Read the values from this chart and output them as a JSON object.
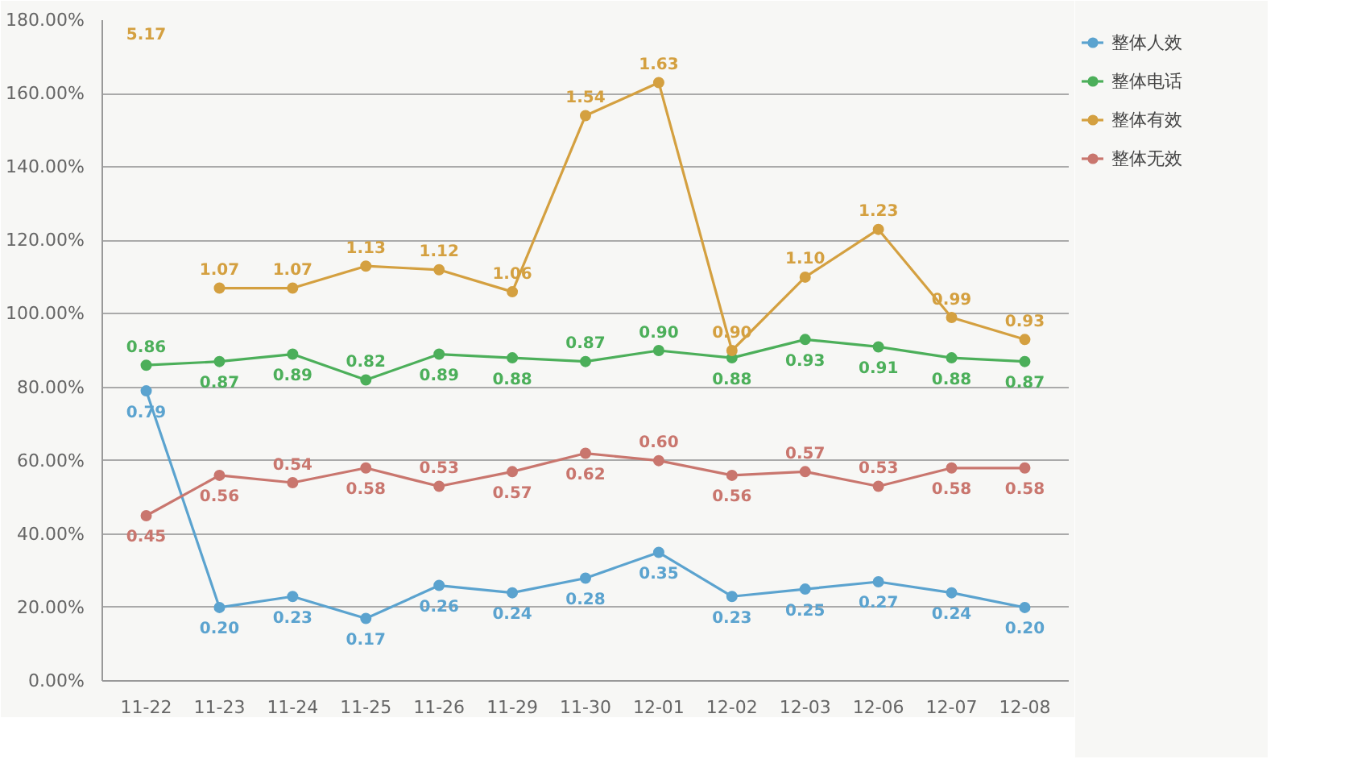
{
  "chart_data": {
    "type": "line",
    "categories": [
      "11-22",
      "11-23",
      "11-24",
      "11-25",
      "11-26",
      "11-29",
      "11-30",
      "12-01",
      "12-02",
      "12-03",
      "12-06",
      "12-07",
      "12-08"
    ],
    "series": [
      {
        "name": "整体人效",
        "color": "#5ba3cf",
        "values": [
          0.79,
          0.2,
          0.23,
          0.17,
          0.26,
          0.24,
          0.28,
          0.35,
          0.23,
          0.25,
          0.27,
          0.24,
          0.2
        ],
        "value_labels": [
          "0.79",
          "0.20",
          "0.23",
          "0.17",
          "0.26",
          "0.24",
          "0.28",
          "0.35",
          "0.23",
          "0.25",
          "0.27",
          "0.24",
          "0.20"
        ]
      },
      {
        "name": "整体电话",
        "color": "#4caf5a",
        "values": [
          0.86,
          0.87,
          0.89,
          0.82,
          0.89,
          0.88,
          0.87,
          0.9,
          0.88,
          0.93,
          0.91,
          0.88,
          0.87
        ],
        "value_labels": [
          "0.86",
          "0.87",
          "0.89",
          "0.82",
          "0.89",
          "0.88",
          "0.87",
          "0.90",
          "0.88",
          "0.93",
          "0.91",
          "0.88",
          "0.87"
        ]
      },
      {
        "name": "整体有效",
        "color": "#d4a040",
        "values": [
          null,
          1.07,
          1.07,
          1.13,
          1.12,
          1.06,
          1.54,
          1.63,
          0.9,
          1.1,
          1.23,
          0.99,
          0.93
        ],
        "value_labels": [
          null,
          "1.07",
          "1.07",
          "1.13",
          "1.12",
          "1.06",
          "1.54",
          "1.63",
          "0.90",
          "1.10",
          "1.23",
          "0.99",
          "0.93"
        ]
      },
      {
        "name": "整体无效",
        "color": "#c9766e",
        "values": [
          0.45,
          0.56,
          0.54,
          0.58,
          0.53,
          0.57,
          0.62,
          0.6,
          0.56,
          0.57,
          0.53,
          0.58,
          0.58
        ],
        "value_labels": [
          "0.45",
          "0.56",
          "0.54",
          "0.58",
          "0.53",
          "0.57",
          "0.62",
          "0.60",
          "0.56",
          "0.57",
          "0.53",
          "0.58",
          "0.58"
        ]
      }
    ],
    "annotations": [
      "5.17"
    ],
    "ylim": [
      0,
      1.8
    ],
    "yticks": [
      {
        "value": 0,
        "label": "0.00%"
      },
      {
        "value": 0.2,
        "label": "20.00%"
      },
      {
        "value": 0.4,
        "label": "40.00%"
      },
      {
        "value": 0.6,
        "label": "60.00%"
      },
      {
        "value": 0.8,
        "label": "80.00%"
      },
      {
        "value": 1.0,
        "label": "100.00%"
      },
      {
        "value": 1.2,
        "label": "120.00%"
      },
      {
        "value": 1.4,
        "label": "140.00%"
      },
      {
        "value": 1.6,
        "label": "160.00%"
      },
      {
        "value": 1.8,
        "label": "180.00%"
      }
    ],
    "grid": "y",
    "legend": "right",
    "marker": "circle",
    "line_style": "solid"
  }
}
